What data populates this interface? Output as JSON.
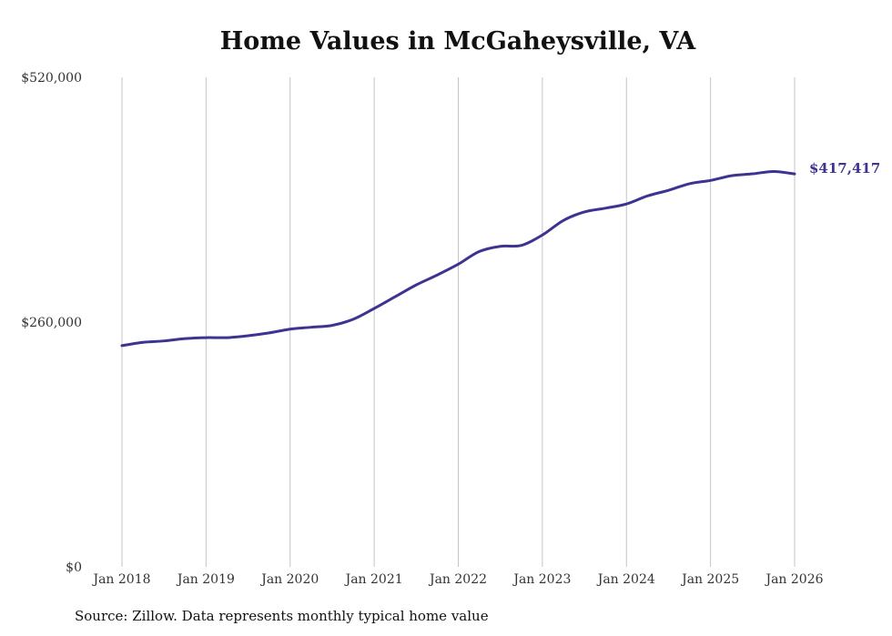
{
  "chart_data": {
    "type": "line",
    "title": "Home Values in McGaheysville, VA",
    "xlabel": "",
    "ylabel": "",
    "ylim": [
      0,
      520000
    ],
    "xlim": [
      2018,
      2026
    ],
    "y_ticks": [
      0,
      260000,
      520000
    ],
    "y_tick_labels": [
      "$0",
      "$260,000",
      "$520,000"
    ],
    "x_ticks": [
      2018,
      2019,
      2020,
      2021,
      2022,
      2023,
      2024,
      2025,
      2026
    ],
    "x_tick_labels": [
      "Jan 2018",
      "Jan 2019",
      "Jan 2020",
      "Jan 2021",
      "Jan 2022",
      "Jan 2023",
      "Jan 2024",
      "Jan 2025",
      "Jan 2026"
    ],
    "grid": "vertical",
    "line_color": "#3d3391",
    "series": [
      {
        "name": "Typical home value",
        "x": [
          2018,
          2018.25,
          2018.5,
          2018.75,
          2019,
          2019.25,
          2019.5,
          2019.75,
          2020,
          2020.25,
          2020.5,
          2020.75,
          2021,
          2021.25,
          2021.5,
          2021.75,
          2022,
          2022.25,
          2022.5,
          2022.75,
          2023,
          2023.25,
          2023.5,
          2023.75,
          2024,
          2024.25,
          2024.5,
          2024.75,
          2025,
          2025.25,
          2025.5,
          2025.75,
          2026
        ],
        "values": [
          235000,
          238500,
          240000,
          242500,
          243500,
          243500,
          245500,
          248500,
          252500,
          254500,
          256500,
          263000,
          274500,
          287000,
          299500,
          310000,
          321500,
          335000,
          340500,
          341500,
          352500,
          368000,
          377000,
          381000,
          385500,
          394000,
          400000,
          407000,
          410500,
          415500,
          417500,
          420000,
          417417
        ]
      }
    ],
    "end_label": "$417,417",
    "source": "Source: Zillow. Data represents monthly typical home value"
  }
}
